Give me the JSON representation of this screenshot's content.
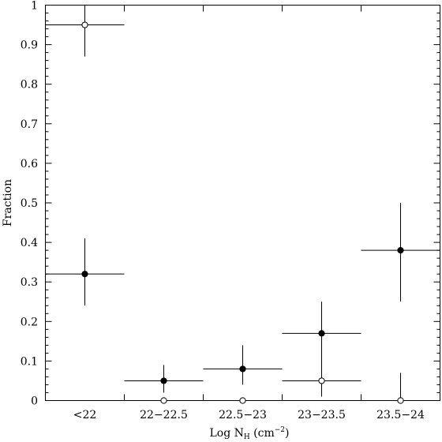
{
  "chart_data": {
    "type": "scatter",
    "title": "",
    "xlabel": "Log N_H (cm^-2)",
    "xlabel_parts": {
      "main": "Log N",
      "subscript": "H",
      "units_open": " (cm",
      "superscript": "−2",
      "units_close": ")"
    },
    "ylabel": "Fraction",
    "ylim": [
      0,
      1
    ],
    "yticks": [
      0,
      0.1,
      0.2,
      0.3,
      0.4,
      0.5,
      0.6,
      0.7,
      0.8,
      0.9,
      1
    ],
    "ytick_labels": [
      "0",
      "0.1",
      "0.2",
      "0.3",
      "0.4",
      "0.5",
      "0.6",
      "0.7",
      "0.8",
      "0.9",
      "1"
    ],
    "categories": [
      "<22",
      "22−22.5",
      "22.5−23",
      "23−23.5",
      "23.5−24"
    ],
    "grid": false,
    "series": [
      {
        "marker": "filled",
        "values": [
          0.32,
          0.05,
          0.08,
          0.17,
          0.38
        ],
        "err_low": [
          0.24,
          0.02,
          0.04,
          0.1,
          0.25
        ],
        "err_high": [
          0.41,
          0.09,
          0.14,
          0.25,
          0.5
        ]
      },
      {
        "marker": "open",
        "values": [
          0.95,
          0.0,
          0.0,
          0.05,
          0.0
        ],
        "err_low": [
          0.87,
          0.0,
          0.0,
          0.01,
          0.0
        ],
        "err_high": [
          1.0,
          0.0,
          0.0,
          0.12,
          0.07
        ]
      }
    ]
  }
}
